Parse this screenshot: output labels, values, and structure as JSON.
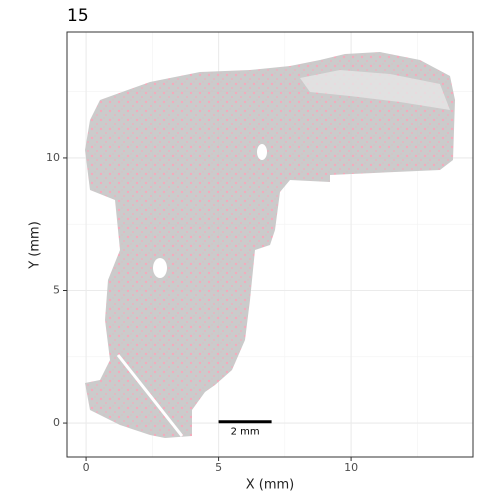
{
  "chart_data": {
    "type": "spatial",
    "title": "15",
    "xlabel": "X (mm)",
    "ylabel": "Y (mm)",
    "xlim": [
      -0.72,
      14.6
    ],
    "ylim": [
      -1.28,
      14.75
    ],
    "xticks": [
      0,
      5,
      10
    ],
    "yticks": [
      0,
      5,
      10
    ],
    "minor_xticks": [
      2.5,
      7.5,
      12.5
    ],
    "minor_yticks": [
      2.5,
      7.5,
      12.5
    ],
    "grid": true,
    "scale_bar": {
      "start": 5,
      "length": 2,
      "y": 0.05,
      "label": "2 mm"
    },
    "colors": {
      "cells": "#c8c8c8",
      "highlight": "#f4a6b8"
    }
  }
}
